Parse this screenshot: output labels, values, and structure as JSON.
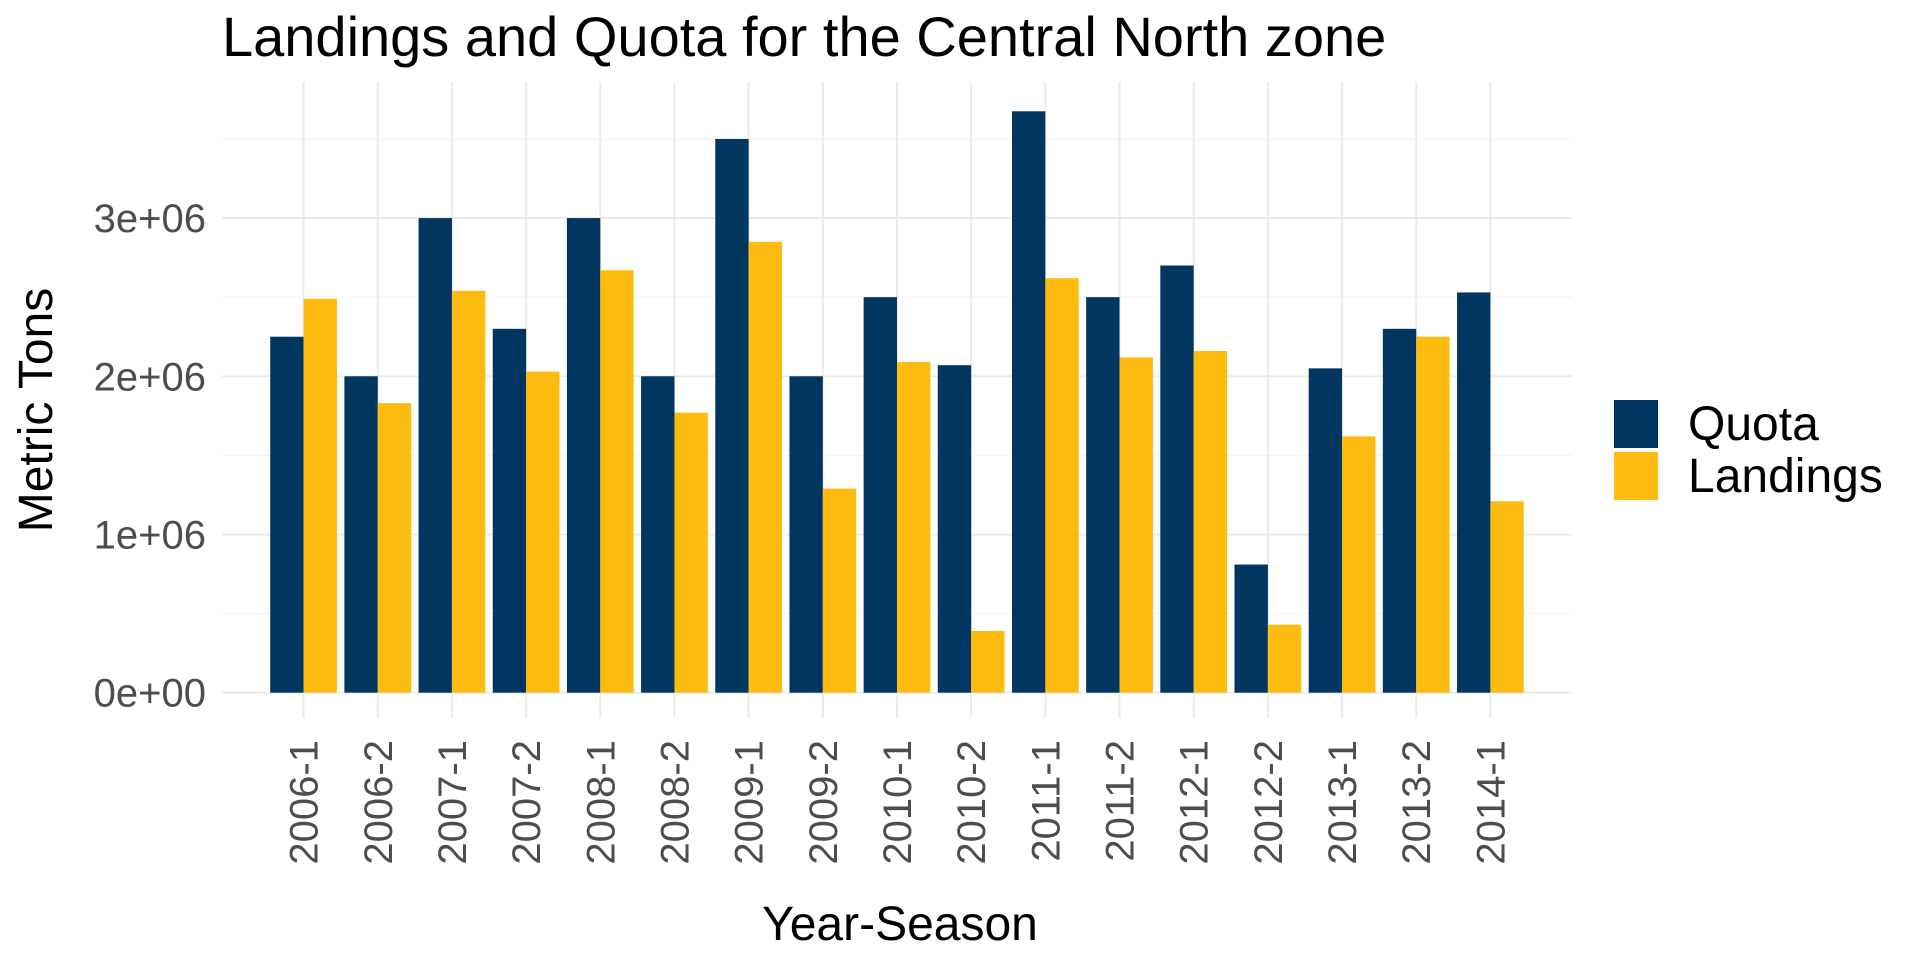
{
  "chart_data": {
    "type": "bar",
    "title": "Landings and Quota for the Central North zone",
    "xlabel": "Year-Season",
    "ylabel": "Metric Tons",
    "categories": [
      "2006-1",
      "2006-2",
      "2007-1",
      "2007-2",
      "2008-1",
      "2008-2",
      "2009-1",
      "2009-2",
      "2010-1",
      "2010-2",
      "2011-1",
      "2011-2",
      "2012-1",
      "2012-2",
      "2013-1",
      "2013-2",
      "2014-1"
    ],
    "series": [
      {
        "name": "Quota",
        "color": "#003660",
        "values": [
          2250000,
          2000000,
          3000000,
          2300000,
          3000000,
          2000000,
          3500000,
          2000000,
          2500000,
          2070000,
          3675000,
          2500000,
          2700000,
          810000,
          2050000,
          2300000,
          2530000
        ]
      },
      {
        "name": "Landings",
        "color": "#FEBC11",
        "values": [
          2490000,
          1830000,
          2540000,
          2030000,
          2670000,
          1770000,
          2850000,
          1290000,
          2090000,
          390000,
          2620000,
          2120000,
          2160000,
          430000,
          1620000,
          2250000,
          1210000
        ]
      }
    ],
    "ylim": [
      -160000,
      3860000
    ],
    "yticks": [
      0,
      1000000,
      2000000,
      3000000
    ],
    "ytick_labels": [
      "0e+00",
      "1e+06",
      "2e+06",
      "3e+06"
    ],
    "grid": true,
    "legend": "right"
  }
}
